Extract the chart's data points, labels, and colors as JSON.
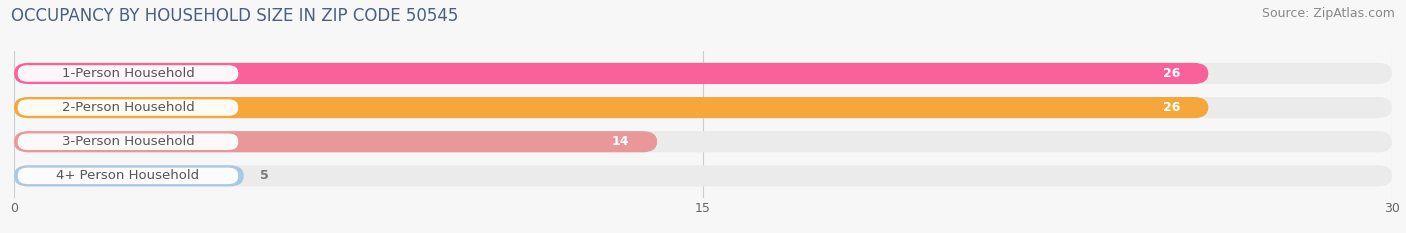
{
  "title": "OCCUPANCY BY HOUSEHOLD SIZE IN ZIP CODE 50545",
  "source": "Source: ZipAtlas.com",
  "categories": [
    "1-Person Household",
    "2-Person Household",
    "3-Person Household",
    "4+ Person Household"
  ],
  "values": [
    26,
    26,
    14,
    5
  ],
  "bar_colors": [
    "#F9619A",
    "#F5A73B",
    "#E89898",
    "#A8C8E8"
  ],
  "bar_bg_color": "#EBEBEB",
  "xlim": [
    0,
    30
  ],
  "xticks": [
    0,
    15,
    30
  ],
  "label_text_color": "#555555",
  "value_text_color": "#FFFFFF",
  "value_text_color_outside": "#777777",
  "bg_color": "#F7F7F7",
  "title_fontsize": 12,
  "source_fontsize": 9,
  "label_fontsize": 9.5,
  "value_fontsize": 9,
  "bar_height": 0.62,
  "bar_rounding": 0.31
}
